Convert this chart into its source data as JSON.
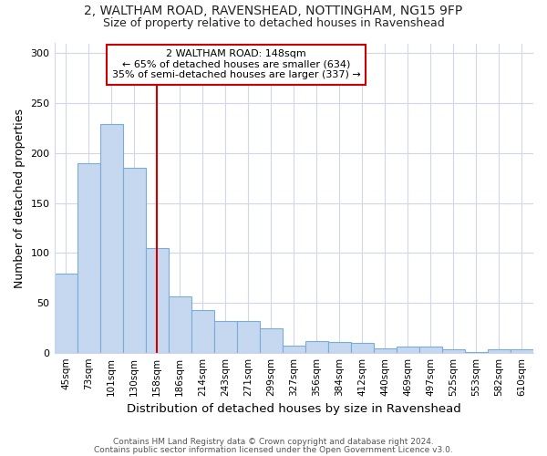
{
  "title_line1": "2, WALTHAM ROAD, RAVENSHEAD, NOTTINGHAM, NG15 9FP",
  "title_line2": "Size of property relative to detached houses in Ravenshead",
  "xlabel": "Distribution of detached houses by size in Ravenshead",
  "ylabel": "Number of detached properties",
  "categories": [
    "45sqm",
    "73sqm",
    "101sqm",
    "130sqm",
    "158sqm",
    "186sqm",
    "214sqm",
    "243sqm",
    "271sqm",
    "299sqm",
    "327sqm",
    "356sqm",
    "384sqm",
    "412sqm",
    "440sqm",
    "469sqm",
    "497sqm",
    "525sqm",
    "553sqm",
    "582sqm",
    "610sqm"
  ],
  "values": [
    79,
    190,
    229,
    185,
    105,
    56,
    43,
    32,
    32,
    24,
    7,
    12,
    11,
    10,
    4,
    6,
    6,
    3,
    1,
    3,
    3
  ],
  "bar_color": "#c5d8f0",
  "bar_edgecolor": "#7aacd6",
  "property_label": "2 WALTHAM ROAD: 148sqm",
  "annotation_line1": "← 65% of detached houses are smaller (634)",
  "annotation_line2": "35% of semi-detached houses are larger (337) →",
  "vline_color": "#cc0000",
  "vline_position": 4,
  "ylim": [
    0,
    310
  ],
  "yticks": [
    0,
    50,
    100,
    150,
    200,
    250,
    300
  ],
  "grid_color": "#d0d8e8",
  "background_color": "#ffffff",
  "footer_line1": "Contains HM Land Registry data © Crown copyright and database right 2024.",
  "footer_line2": "Contains public sector information licensed under the Open Government Licence v3.0."
}
